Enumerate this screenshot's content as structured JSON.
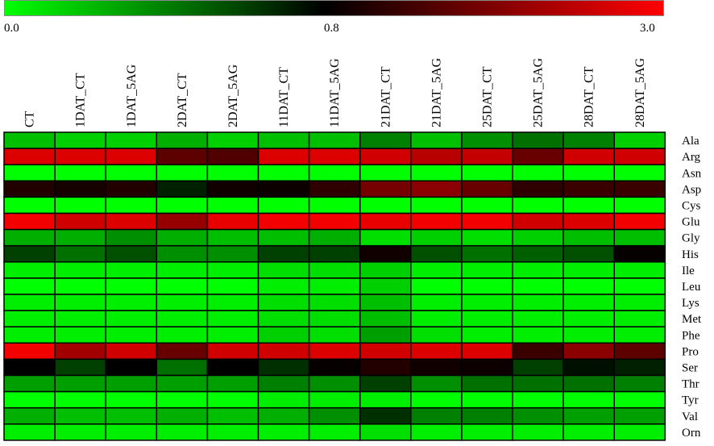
{
  "chart_data": {
    "type": "heatmap",
    "colorbar": {
      "min_label": "0.0",
      "mid_label": "0.8",
      "max_label": "3.0",
      "min": 0.0,
      "mid": 0.8,
      "max": 3.0,
      "colors": [
        "#00ff00",
        "#000000",
        "#ff0000"
      ]
    },
    "columns": [
      "CT",
      "1DAT_CT",
      "1DAT_5AG",
      "2DAT_CT",
      "2DAT_5AG",
      "11DAT_CT",
      "11DAT_5AG",
      "21DAT_CT",
      "21DAT_5AG",
      "25DAT_CT",
      "25DAT_5AG",
      "28DAT_CT",
      "28DAT_5AG"
    ],
    "rows": [
      "Ala",
      "Arg",
      "Asn",
      "Asp",
      "Cys",
      "Glu",
      "Gly",
      "His",
      "Ile",
      "Leu",
      "Lys",
      "Met",
      "Phe",
      "Pro",
      "Ser",
      "Thr",
      "Tyr",
      "Val",
      "Orn"
    ],
    "values": [
      [
        0.2,
        0.15,
        0.15,
        0.25,
        0.15,
        0.2,
        0.2,
        0.4,
        0.2,
        0.35,
        0.45,
        0.4,
        0.15
      ],
      [
        2.7,
        2.7,
        2.7,
        1.6,
        1.5,
        2.7,
        2.7,
        2.6,
        2.4,
        2.5,
        1.7,
        2.6,
        2.6
      ],
      [
        0.0,
        0.0,
        0.0,
        0.0,
        0.0,
        0.0,
        0.0,
        0.0,
        0.0,
        0.0,
        0.0,
        0.0,
        0.0
      ],
      [
        1.1,
        1.0,
        1.1,
        0.7,
        0.95,
        0.9,
        1.2,
        1.8,
        2.0,
        1.7,
        1.2,
        1.3,
        1.3
      ],
      [
        0.0,
        0.0,
        0.0,
        0.0,
        0.0,
        0.0,
        0.0,
        0.0,
        0.0,
        0.0,
        0.0,
        0.0,
        0.0
      ],
      [
        2.9,
        2.6,
        2.7,
        2.1,
        2.8,
        2.9,
        2.9,
        2.8,
        2.9,
        2.9,
        2.6,
        2.7,
        2.9
      ],
      [
        0.25,
        0.25,
        0.35,
        0.25,
        0.2,
        0.2,
        0.25,
        0.1,
        0.15,
        0.1,
        0.15,
        0.2,
        0.2
      ],
      [
        0.6,
        0.45,
        0.55,
        0.35,
        0.35,
        0.6,
        0.6,
        0.95,
        0.55,
        0.45,
        0.5,
        0.55,
        0.85
      ],
      [
        0.05,
        0.05,
        0.05,
        0.05,
        0.05,
        0.1,
        0.1,
        0.15,
        0.05,
        0.05,
        0.05,
        0.05,
        0.05
      ],
      [
        0.0,
        0.0,
        0.0,
        0.0,
        0.0,
        0.05,
        0.05,
        0.15,
        0.0,
        0.0,
        0.0,
        0.0,
        0.0
      ],
      [
        0.05,
        0.05,
        0.05,
        0.05,
        0.05,
        0.1,
        0.1,
        0.2,
        0.05,
        0.05,
        0.05,
        0.05,
        0.05
      ],
      [
        0.05,
        0.05,
        0.05,
        0.05,
        0.05,
        0.1,
        0.1,
        0.2,
        0.05,
        0.05,
        0.05,
        0.05,
        0.05
      ],
      [
        0.05,
        0.05,
        0.05,
        0.05,
        0.05,
        0.15,
        0.1,
        0.3,
        0.1,
        0.05,
        0.05,
        0.05,
        0.05
      ],
      [
        2.9,
        2.2,
        2.6,
        1.7,
        2.6,
        2.6,
        2.7,
        2.6,
        2.7,
        2.7,
        1.3,
        2.0,
        1.6
      ],
      [
        0.8,
        0.6,
        0.8,
        0.45,
        0.8,
        0.65,
        0.85,
        1.1,
        0.95,
        0.9,
        0.6,
        0.75,
        0.7
      ],
      [
        0.3,
        0.3,
        0.3,
        0.3,
        0.3,
        0.4,
        0.35,
        0.6,
        0.35,
        0.45,
        0.45,
        0.45,
        0.4
      ],
      [
        0.0,
        0.0,
        0.0,
        0.0,
        0.0,
        0.05,
        0.05,
        0.05,
        0.0,
        0.0,
        0.0,
        0.0,
        0.0
      ],
      [
        0.25,
        0.2,
        0.2,
        0.25,
        0.2,
        0.25,
        0.35,
        0.65,
        0.4,
        0.4,
        0.35,
        0.3,
        0.3
      ],
      [
        0.05,
        0.05,
        0.05,
        0.05,
        0.05,
        0.05,
        0.05,
        0.1,
        0.05,
        0.05,
        0.05,
        0.05,
        0.05
      ]
    ]
  }
}
